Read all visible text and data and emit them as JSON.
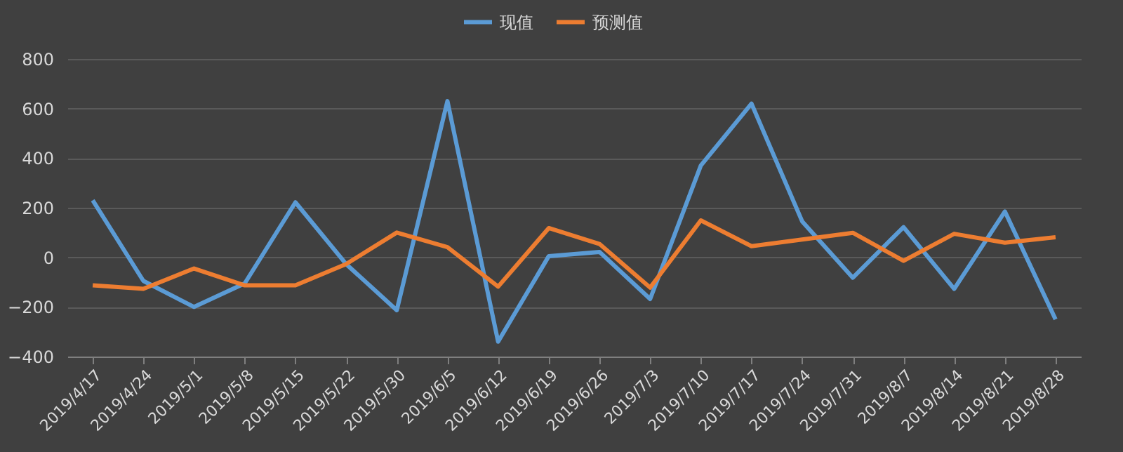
{
  "chart_data": {
    "type": "line",
    "categories": [
      "2019/4/17",
      "2019/4/24",
      "2019/5/1",
      "2019/5/8",
      "2019/5/15",
      "2019/5/22",
      "2019/5/30",
      "2019/6/5",
      "2019/6/12",
      "2019/6/19",
      "2019/6/26",
      "2019/7/3",
      "2019/7/10",
      "2019/7/17",
      "2019/7/24",
      "2019/7/31",
      "2019/8/7",
      "2019/8/14",
      "2019/8/21",
      "2019/8/28"
    ],
    "series": [
      {
        "name": "现值",
        "color": "#5b9bd5",
        "values": [
          230,
          -95,
          -200,
          -105,
          222,
          -27,
          -213,
          630,
          -340,
          5,
          22,
          -168,
          370,
          620,
          145,
          -82,
          122,
          -127,
          185,
          -250
        ]
      },
      {
        "name": "预测值",
        "color": "#ed7d31",
        "values": [
          -113,
          -127,
          -45,
          -113,
          -113,
          -27,
          100,
          41,
          -118,
          118,
          54,
          -122,
          149,
          45,
          72,
          99,
          -14,
          95,
          59,
          81
        ]
      }
    ],
    "ylim": [
      -400,
      800
    ],
    "yticks": [
      -400,
      -200,
      0,
      200,
      400,
      600,
      800
    ],
    "grid": "y",
    "legend": "top",
    "line_style": "solid",
    "marker": "none"
  }
}
